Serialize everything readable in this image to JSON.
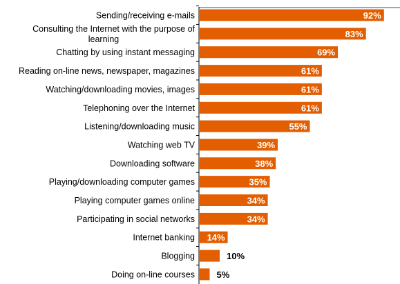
{
  "chart_data": {
    "type": "bar",
    "orientation": "horizontal",
    "title": "",
    "xlabel": "",
    "ylabel": "",
    "xlim": [
      0,
      100
    ],
    "grid": false,
    "legend": "none",
    "bar_color": "#E35E00",
    "value_suffix": "%",
    "categories": [
      [
        "Sending/receiving e-mails"
      ],
      [
        "Consulting the Internet with the purpose of",
        "learning"
      ],
      [
        "Chatting by using instant messaging"
      ],
      [
        "Reading on-line news, newspaper, magazines"
      ],
      [
        "Watching/downloading movies, images"
      ],
      [
        "Telephoning over the Internet"
      ],
      [
        "Listening/downloading music"
      ],
      [
        "Watching web TV"
      ],
      [
        "Downloading software"
      ],
      [
        "Playing/downloading computer games"
      ],
      [
        "Playing computer games online"
      ],
      [
        "Participating in social networks"
      ],
      [
        "Internet banking"
      ],
      [
        "Blogging"
      ],
      [
        "Doing on-line courses"
      ]
    ],
    "values": [
      92,
      83,
      69,
      61,
      61,
      61,
      55,
      39,
      38,
      35,
      34,
      34,
      14,
      10,
      5
    ]
  }
}
